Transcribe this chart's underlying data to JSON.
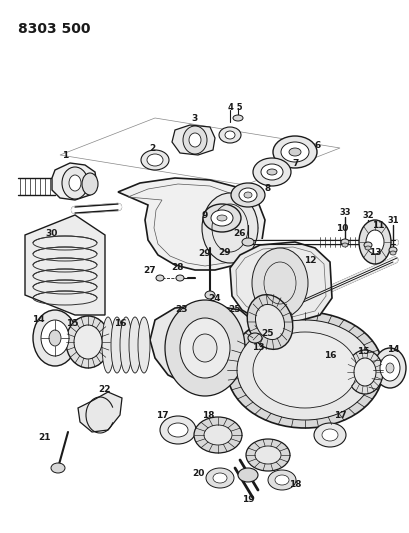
{
  "title": "8303 500",
  "bg_color": "#ffffff",
  "lc": "#1a1a1a",
  "title_fontsize": 10,
  "label_fontsize": 6.5,
  "fig_width": 4.1,
  "fig_height": 5.33,
  "dpi": 100
}
